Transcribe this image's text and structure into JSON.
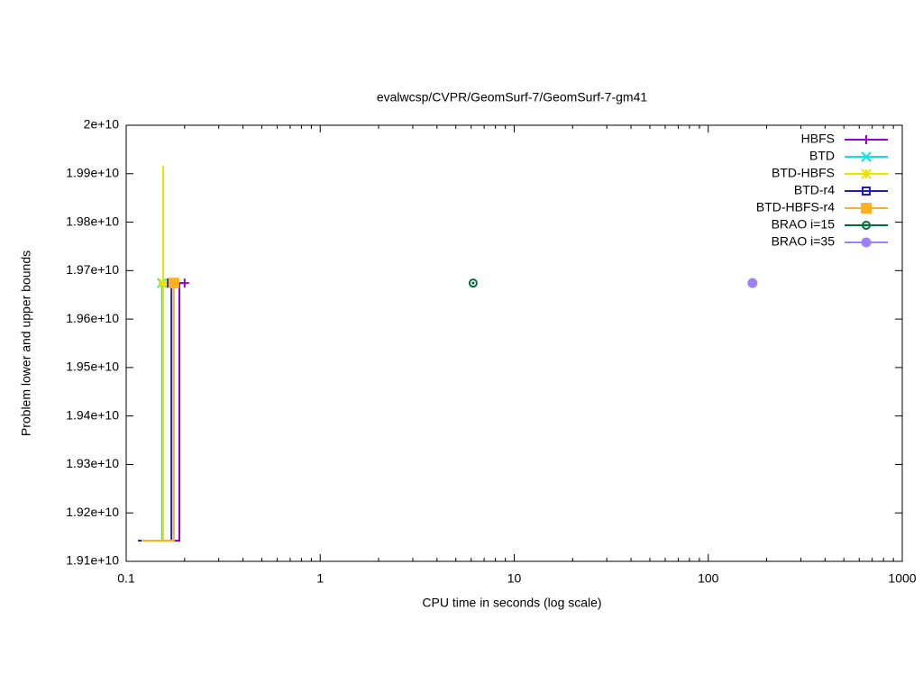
{
  "chart_data": {
    "type": "line",
    "title": "evalwcsp/CVPR/GeomSurf-7/GeomSurf-7-gm41",
    "x_label": "CPU time in seconds (log scale)",
    "y_label": "Problem lower and upper bounds",
    "xlog": true,
    "xlim": [
      0.1,
      1000
    ],
    "xticks": [
      0.1,
      1,
      10,
      100,
      1000
    ],
    "ylim": [
      19100000000,
      20000000000
    ],
    "yticks": [
      {
        "value": 19100000000,
        "label": "1.91e+10"
      },
      {
        "value": 19200000000,
        "label": "1.92e+10"
      },
      {
        "value": 19300000000,
        "label": "1.93e+10"
      },
      {
        "value": 19400000000,
        "label": "1.94e+10"
      },
      {
        "value": 19500000000,
        "label": "1.95e+10"
      },
      {
        "value": 19600000000,
        "label": "1.96e+10"
      },
      {
        "value": 19700000000,
        "label": "1.97e+10"
      },
      {
        "value": 19800000000,
        "label": "1.98e+10"
      },
      {
        "value": 19900000000,
        "label": "1.99e+10"
      },
      {
        "value": 20000000000,
        "label": "2e+10"
      }
    ],
    "legend": "top-right",
    "series": [
      {
        "name": "HBFS",
        "color": "#9400d3",
        "marker": "plus",
        "x": [
          0.115,
          0.188,
          0.188,
          0.2
        ],
        "values": [
          19142700000,
          19142700000,
          19674300000,
          19674300000
        ]
      },
      {
        "name": "BTD",
        "color": "#00e5ee",
        "marker": "cross",
        "x": [
          0.115,
          0.153,
          0.153
        ],
        "values": [
          19142700000,
          19142700000,
          19674300000
        ]
      },
      {
        "name": "BTD-HBFS",
        "color": "#e5e500",
        "marker": "star",
        "x": [
          0.12,
          0.155,
          0.155,
          0.155
        ],
        "values": [
          19142700000,
          19142700000,
          19916000000,
          19674300000
        ]
      },
      {
        "name": "BTD-r4",
        "color": "#1e1ebf",
        "marker": "open-square",
        "x": [
          0.115,
          0.171,
          0.171
        ],
        "values": [
          19142700000,
          19142700000,
          19674300000
        ]
      },
      {
        "name": "BTD-HBFS-r4",
        "color": "#ffb020",
        "marker": "square",
        "x": [
          0.12,
          0.176,
          0.176
        ],
        "values": [
          19142700000,
          19142700000,
          19674300000
        ]
      },
      {
        "name": "BRAO i=15",
        "color": "#006d3c",
        "marker": "open-circle",
        "x": [
          6.14
        ],
        "values": [
          19674300000
        ]
      },
      {
        "name": "BRAO i=35",
        "color": "#9f7fff",
        "marker": "circle",
        "x": [
          169
        ],
        "values": [
          19674300000
        ]
      }
    ]
  }
}
